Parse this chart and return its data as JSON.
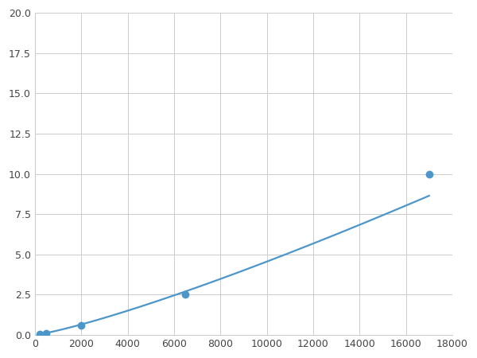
{
  "x_points": [
    200,
    500,
    2000,
    6500,
    17000
  ],
  "y_points": [
    0.05,
    0.1,
    0.6,
    2.5,
    10.0
  ],
  "marker_indices": [
    0,
    1,
    2,
    3,
    4
  ],
  "line_color": "#4d96c9",
  "marker_color": "#4d96c9",
  "marker_size": 6,
  "line_width": 1.6,
  "xlim": [
    0,
    18000
  ],
  "ylim": [
    0,
    20
  ],
  "xticks": [
    0,
    2000,
    4000,
    6000,
    8000,
    10000,
    12000,
    14000,
    16000,
    18000
  ],
  "yticks": [
    0.0,
    2.5,
    5.0,
    7.5,
    10.0,
    12.5,
    15.0,
    17.5,
    20.0
  ],
  "grid_color": "#cccccc",
  "plot_bg": "#ffffff",
  "fig_bg": "#ffffff",
  "tick_fontsize": 9
}
